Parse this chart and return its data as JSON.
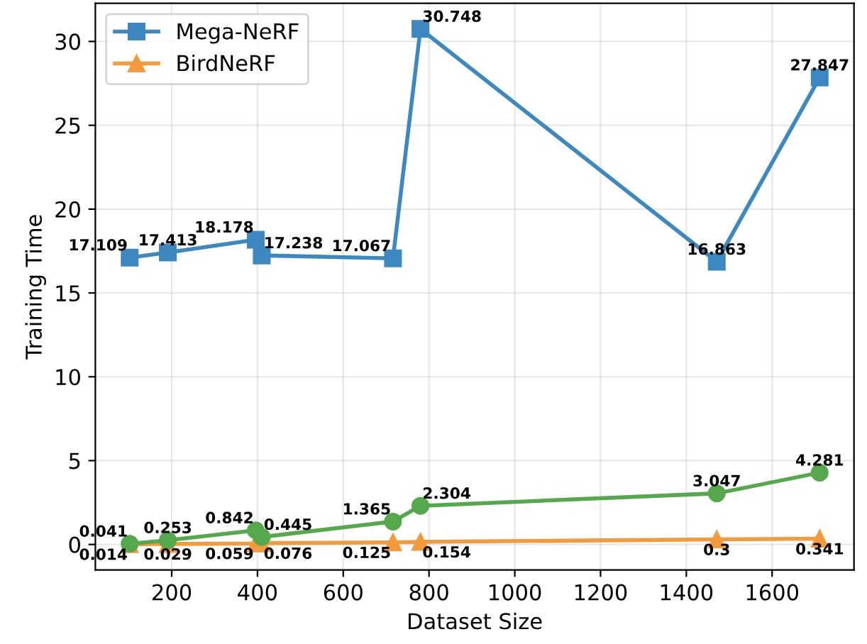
{
  "chart_data": {
    "type": "line",
    "xlabel": "Dataset Size",
    "ylabel": "Training Time",
    "x": [
      102,
      191,
      396,
      410,
      716,
      780,
      1471,
      1711
    ],
    "series": [
      {
        "name": "Mega-NeRF",
        "color": "#3d88c0",
        "marker": "square",
        "values": [
          17.109,
          17.413,
          18.178,
          17.238,
          17.067,
          30.748,
          16.863,
          27.847
        ]
      },
      {
        "name": "BirdNeRF",
        "color": "#f39a3c",
        "marker": "triangle",
        "values": [
          0.014,
          0.029,
          0.059,
          0.076,
          0.125,
          0.154,
          0.3,
          0.341
        ]
      },
      {
        "color": "#55a84b",
        "marker": "circle",
        "values": [
          0.041,
          0.253,
          0.842,
          0.445,
          1.365,
          2.304,
          3.047,
          4.281
        ]
      }
    ],
    "xlim": [
      22,
      1791
    ],
    "xticks": [
      200,
      400,
      600,
      800,
      1000,
      1200,
      1400,
      1600
    ],
    "ylim": [
      -1.52,
      32.28
    ],
    "yticks": [
      0,
      5,
      10,
      15,
      20,
      25,
      30
    ],
    "grid": true,
    "legend": "top left",
    "data_labels": true
  }
}
